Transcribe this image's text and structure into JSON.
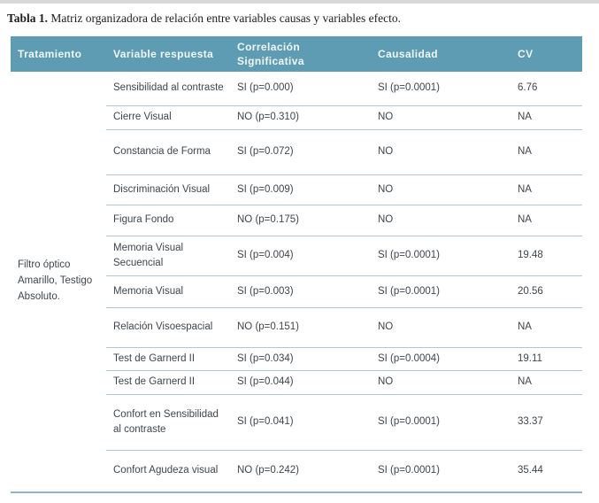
{
  "caption": {
    "label": "Tabla 1.",
    "text": "Matriz organizadora de relación entre variables causas y variables efecto."
  },
  "colors": {
    "header_bg": "#5d9cb2",
    "header_text": "#f2f7f9",
    "row_separator": "#aec9d5",
    "table_bottom_border": "#8fb6c4",
    "body_text": "#3e464d"
  },
  "table": {
    "headers": [
      "Tratamiento",
      "Variable respuesta",
      "Correlación\nSignificativa",
      "Causalidad",
      "CV"
    ],
    "treatment": "Filtro óptico\nAmarillo, Testigo\nAbsoluto.",
    "rows": [
      {
        "variable": "Sensibilidad al contraste",
        "correlacion": "SI (p=0.000)",
        "causalidad": "SI (p=0.0001)",
        "cv": "6.76"
      },
      {
        "variable": "Cierre Visual",
        "correlacion": "NO (p=0.310)",
        "causalidad": "NO",
        "cv": "NA"
      },
      {
        "variable": "Constancia de Forma",
        "correlacion": "SI (p=0.072)",
        "causalidad": "NO",
        "cv": "NA"
      },
      {
        "variable": "Discriminación Visual",
        "correlacion": "SI (p=0.009)",
        "causalidad": "NO",
        "cv": "NA"
      },
      {
        "variable": "Figura Fondo",
        "correlacion": "NO (p=0.175)",
        "causalidad": "NO",
        "cv": "NA"
      },
      {
        "variable": "Memoria Visual\nSecuencial",
        "correlacion": "SI (p=0.004)",
        "causalidad": "SI (p=0.0001)",
        "cv": "19.48"
      },
      {
        "variable": "Memoria Visual",
        "correlacion": "SI (p=0.003)",
        "causalidad": "SI (p=0.0001)",
        "cv": "20.56"
      },
      {
        "variable": "Relación Visoespacial",
        "correlacion": "NO (p=0.151)",
        "causalidad": "NO",
        "cv": "NA"
      },
      {
        "variable": "Test de Garnerd II",
        "correlacion": "SI (p=0.034)",
        "causalidad": "SI (p=0.0004)",
        "cv": "19.11"
      },
      {
        "variable": "Test de Garnerd II",
        "correlacion": "SI (p=0.044)",
        "causalidad": "NO",
        "cv": "NA"
      },
      {
        "variable": "Confort en Sensibilidad\nal contraste",
        "correlacion": "SI (p=0.041)",
        "causalidad": "SI (p=0.0001)",
        "cv": "33.37"
      },
      {
        "variable": "Confort Agudeza visual",
        "correlacion": "NO (p=0.242)",
        "causalidad": "SI (p=0.0001)",
        "cv": "35.44"
      }
    ]
  }
}
